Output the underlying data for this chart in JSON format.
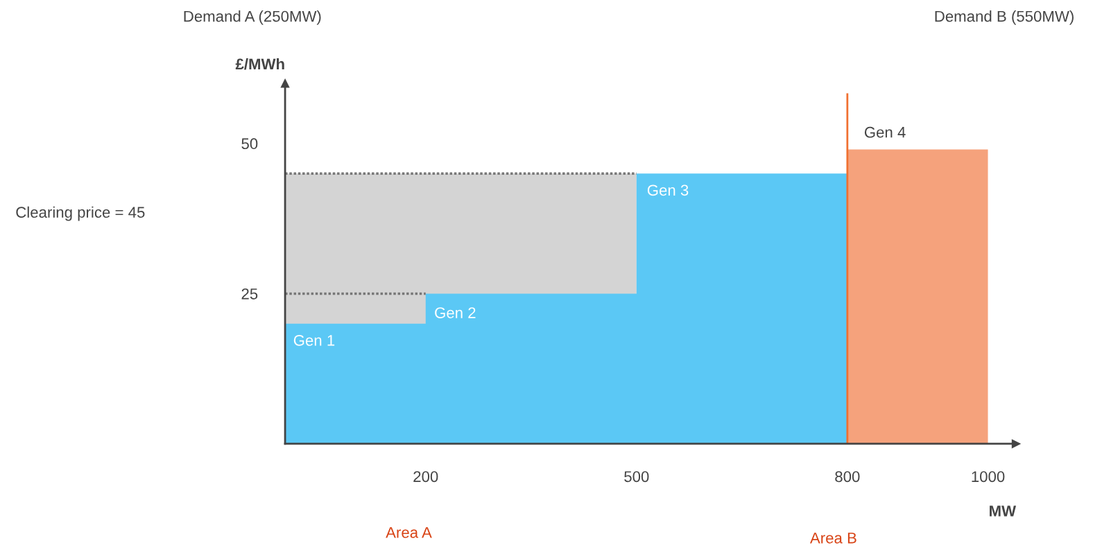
{
  "chart_data": {
    "type": "area",
    "xlabel": "MW",
    "ylabel": "£/MWh",
    "xlim": [
      0,
      1040
    ],
    "ylim": [
      0,
      60
    ],
    "xticks": [
      200,
      500,
      800,
      1000
    ],
    "yticks": [
      25,
      50
    ],
    "series": [
      {
        "color": "#5bc8f5",
        "x": [
          0,
          200,
          200,
          500,
          500,
          800
        ],
        "values": [
          20,
          20,
          25,
          25,
          45,
          45
        ]
      },
      {
        "color": "#d4d4d4",
        "line_style": "dotted",
        "x": [
          0,
          500
        ],
        "values": [
          45,
          45
        ]
      },
      {
        "type": "line",
        "color": "#777777",
        "line_style": "dotted",
        "x": [
          0,
          200
        ],
        "values": [
          25,
          25
        ]
      },
      {
        "color": "#f5a27c",
        "x": [
          800,
          1000
        ],
        "values": [
          49,
          49
        ]
      }
    ],
    "ref_lines": [
      {
        "axis": "x",
        "value": 800,
        "color": "#f07030"
      }
    ],
    "annotations": [
      "Gen 1",
      "Gen 2",
      "Gen 3",
      "Gen 4",
      "Demand A (250MW)",
      "Demand B (550MW)",
      "Clearing price = 45",
      "Area A",
      "Area B"
    ]
  }
}
